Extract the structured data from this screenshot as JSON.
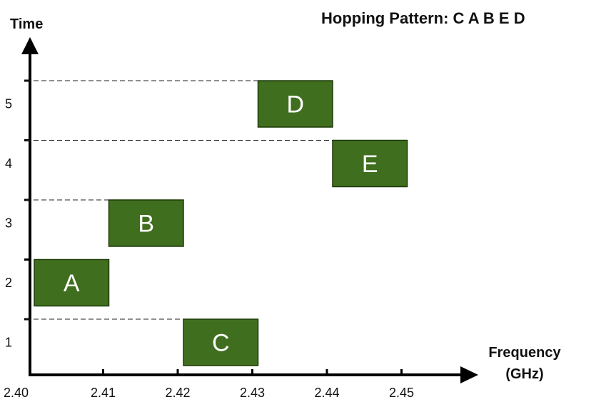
{
  "title": "Hopping Pattern: C A B E D",
  "y_axis_label": "Time",
  "x_axis_label_line1": "Frequency",
  "x_axis_label_line2": "(GHz)",
  "colors": {
    "block": "#3f6f1e",
    "axis": "#000000"
  },
  "freq_ticks": [
    "2.40",
    "2.41",
    "2.42",
    "2.43",
    "2.44",
    "2.45"
  ],
  "time_ticks": [
    "1",
    "2",
    "3",
    "4",
    "5"
  ],
  "blocks": [
    {
      "label": "C",
      "freq_start": 2.42,
      "freq_end": 2.43,
      "time_slot": 1
    },
    {
      "label": "A",
      "freq_start": 2.4,
      "freq_end": 2.41,
      "time_slot": 2
    },
    {
      "label": "B",
      "freq_start": 2.41,
      "freq_end": 2.42,
      "time_slot": 3
    },
    {
      "label": "E",
      "freq_start": 2.44,
      "freq_end": 2.45,
      "time_slot": 4
    },
    {
      "label": "D",
      "freq_start": 2.43,
      "freq_end": 2.44,
      "time_slot": 5
    }
  ]
}
